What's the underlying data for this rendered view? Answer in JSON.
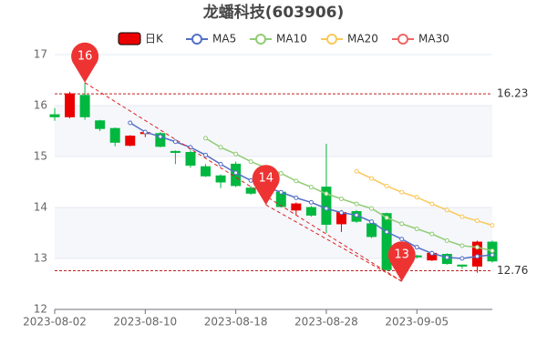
{
  "chart_data": {
    "type": "candlestick",
    "title": "龙蟠科技(603906)",
    "categories": [
      "2023-08-02",
      null,
      null,
      null,
      null,
      null,
      "2023-08-10",
      null,
      null,
      null,
      null,
      null,
      "2023-08-18",
      null,
      null,
      null,
      null,
      null,
      "2023-08-28",
      null,
      null,
      null,
      null,
      null,
      "2023-09-05",
      null,
      null,
      null,
      null,
      null
    ],
    "candles": {
      "name": "日K",
      "up_color": "#eb0000",
      "down_color": "#00b83f",
      "open": [
        15.82,
        15.78,
        16.2,
        15.7,
        15.55,
        15.22,
        15.45,
        15.45,
        15.1,
        15.08,
        14.8,
        14.62,
        14.85,
        14.38,
        14.3,
        14.3,
        13.95,
        14.0,
        14.4,
        13.68,
        13.92,
        13.68,
        13.88,
        13.05,
        13.05,
        12.97,
        13.08,
        12.87,
        12.85,
        13.32
      ],
      "close": [
        15.78,
        16.23,
        15.78,
        15.55,
        15.28,
        15.4,
        15.47,
        15.2,
        15.08,
        14.83,
        14.62,
        14.5,
        14.43,
        14.28,
        14.28,
        14.02,
        14.07,
        13.85,
        13.67,
        13.9,
        13.73,
        13.43,
        12.78,
        13.0,
        13.03,
        13.1,
        12.9,
        12.85,
        13.32,
        12.95
      ],
      "high": [
        15.95,
        16.27,
        16.45,
        15.72,
        15.57,
        15.42,
        15.52,
        15.48,
        15.12,
        15.12,
        14.85,
        14.65,
        14.9,
        14.42,
        14.35,
        14.33,
        14.1,
        14.03,
        15.25,
        13.95,
        13.95,
        13.72,
        13.9,
        13.08,
        13.07,
        13.15,
        13.1,
        12.88,
        13.35,
        13.35
      ],
      "low": [
        15.7,
        15.75,
        15.72,
        15.5,
        15.2,
        15.2,
        15.38,
        15.18,
        14.85,
        14.78,
        14.6,
        14.38,
        14.4,
        14.25,
        14.05,
        14.0,
        13.85,
        13.82,
        13.5,
        13.52,
        13.7,
        13.4,
        12.76,
        12.55,
        13.0,
        12.95,
        12.88,
        12.8,
        12.72,
        12.92
      ]
    },
    "series": [
      {
        "name": "MA5",
        "color": "#5470c6",
        "values": [
          null,
          null,
          null,
          null,
          null,
          15.66,
          15.48,
          15.39,
          15.29,
          15.18,
          15.03,
          14.85,
          14.68,
          14.53,
          14.4,
          14.3,
          14.19,
          14.1,
          13.98,
          13.9,
          13.85,
          13.72,
          13.52,
          13.38,
          13.22,
          13.1,
          13.02,
          13.0,
          13.04,
          13.07
        ]
      },
      {
        "name": "MA10",
        "color": "#91cc75",
        "values": [
          null,
          null,
          null,
          null,
          null,
          null,
          null,
          null,
          null,
          null,
          15.36,
          15.18,
          15.05,
          14.9,
          14.78,
          14.67,
          14.52,
          14.4,
          14.27,
          14.17,
          14.07,
          13.98,
          13.8,
          13.68,
          13.58,
          13.48,
          13.35,
          13.25,
          13.22,
          13.15
        ]
      },
      {
        "name": "MA20",
        "color": "#fac858",
        "values": [
          null,
          null,
          null,
          null,
          null,
          null,
          null,
          null,
          null,
          null,
          null,
          null,
          null,
          null,
          null,
          null,
          null,
          null,
          null,
          null,
          14.71,
          14.57,
          14.42,
          14.3,
          14.2,
          14.07,
          13.95,
          13.82,
          13.74,
          13.65
        ]
      },
      {
        "name": "MA30",
        "color": "#ee6666",
        "values": [
          null,
          null,
          null,
          null,
          null,
          null,
          null,
          null,
          null,
          null,
          null,
          null,
          null,
          null,
          null,
          null,
          null,
          null,
          null,
          null,
          null,
          null,
          null,
          null,
          null,
          null,
          null,
          null,
          null,
          null
        ]
      }
    ],
    "pins": [
      {
        "label": "16",
        "value": 16.45
      },
      {
        "label": "14",
        "value": 14.05
      },
      {
        "label": "13",
        "value": 12.55
      }
    ],
    "pin_color": "#ee3333",
    "hlines": [
      {
        "value": 16.23,
        "label": "16.23"
      },
      {
        "value": 12.76,
        "label": "12.76"
      }
    ],
    "ylim": [
      12,
      17
    ],
    "yticks": [
      12,
      13,
      14,
      15,
      16,
      17
    ],
    "grid": true
  }
}
